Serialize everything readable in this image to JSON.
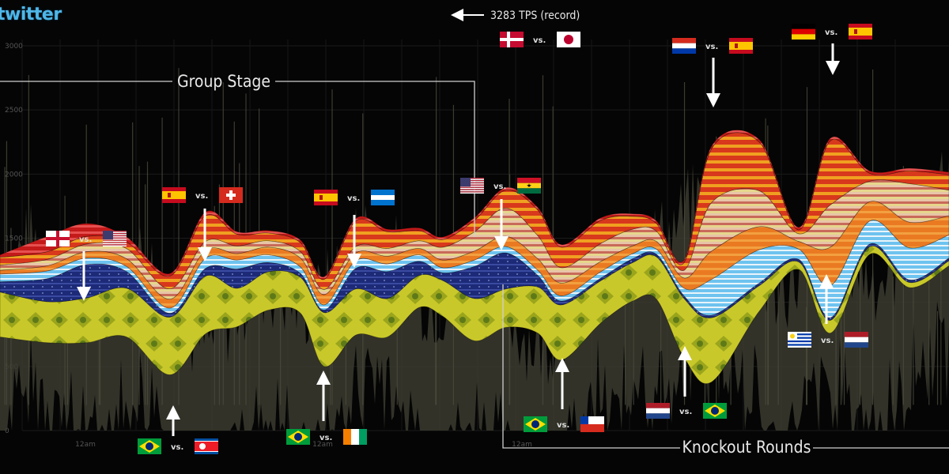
{
  "logo_text": "twitter",
  "colors": {
    "background": "#050505",
    "noise_fill": "#3b3b30",
    "brazil_layer": "#c9c82a",
    "usa_layer": "#1c2a78",
    "spain_layer": "#e35a1c",
    "argentina_layer": "#6ec3ef",
    "netherlands_layer": "#ea7a22",
    "germany_layer": "#c9c0a8",
    "uk_layer": "#c41a1a"
  },
  "chart_data": {
    "type": "area",
    "subtype": "streamgraph",
    "metric": "TPS",
    "yticks": [
      "3000",
      "2500",
      "2000",
      "1500",
      "1000",
      "500",
      "0"
    ],
    "ylim": [
      0,
      3000
    ],
    "xticks": [
      {
        "label": "12am",
        "x": 0.09
      },
      {
        "label": "12am",
        "x": 0.34
      },
      {
        "label": "12am",
        "x": 0.55
      }
    ],
    "grid": true,
    "annotations": {
      "group_stage": "Group Stage",
      "knockout": "Knockout Rounds",
      "record": "3283 TPS (record)",
      "vs": "vs."
    },
    "matches": [
      {
        "home": "England",
        "away": "USA",
        "peak_tps": 1000,
        "x": 0.09,
        "label_pos": "above"
      },
      {
        "home": "Brazil",
        "away": "North Korea",
        "peak_tps": 150,
        "x": 0.18,
        "label_pos": "below"
      },
      {
        "home": "Spain",
        "away": "Switzerland",
        "peak_tps": 1350,
        "x": 0.215,
        "label_pos": "above"
      },
      {
        "home": "Brazil",
        "away": "Ivory Coast",
        "peak_tps": 500,
        "x": 0.34,
        "label_pos": "below"
      },
      {
        "home": "Spain",
        "away": "Honduras",
        "peak_tps": 1300,
        "x": 0.37,
        "label_pos": "above"
      },
      {
        "home": "Denmark",
        "away": "Japan",
        "peak_tps": 3283,
        "x": 0.56,
        "label_pos": "above"
      },
      {
        "home": "USA",
        "away": "Ghana",
        "peak_tps": 1400,
        "x": 0.53,
        "label_pos": "above"
      },
      {
        "home": "Brazil",
        "away": "Chile",
        "peak_tps": 550,
        "x": 0.59,
        "label_pos": "below"
      },
      {
        "home": "Paraguay",
        "away": "Spain",
        "peak_tps": 2500,
        "x": 0.75,
        "label_pos": "above"
      },
      {
        "home": "Netherlands",
        "away": "Brazil",
        "peak_tps": 700,
        "x": 0.72,
        "label_pos": "below"
      },
      {
        "home": "Uruguay",
        "away": "Netherlands",
        "peak_tps": 1250,
        "x": 0.87,
        "label_pos": "below"
      },
      {
        "home": "Germany",
        "away": "Spain",
        "peak_tps": 2750,
        "x": 0.88,
        "label_pos": "above"
      }
    ],
    "series": [
      {
        "name": "Brazil",
        "color": "#c9c82a"
      },
      {
        "name": "USA",
        "color": "#1c2a78"
      },
      {
        "name": "Spain",
        "color": "#e35a1c"
      },
      {
        "name": "Argentina",
        "color": "#6ec3ef"
      },
      {
        "name": "Netherlands",
        "color": "#ea7a22"
      },
      {
        "name": "Germany",
        "color": "#c9c0a8"
      },
      {
        "name": "England",
        "color": "#c41a1a"
      }
    ]
  }
}
